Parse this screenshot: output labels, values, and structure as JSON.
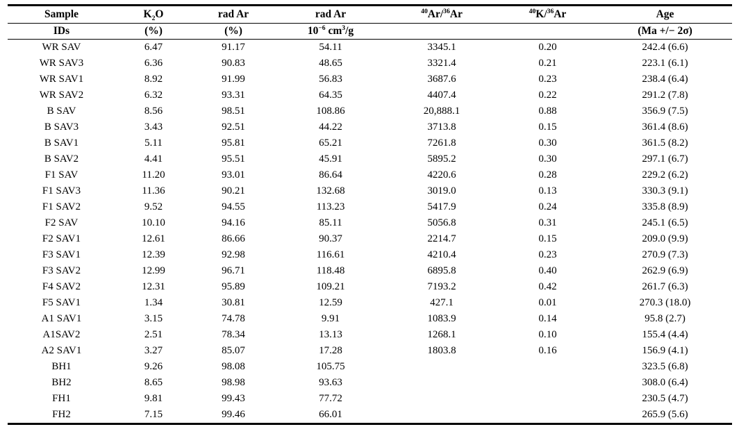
{
  "page": {
    "background_color": "#ffffff",
    "text_color": "#000000",
    "rule_color": "#000000"
  },
  "chart_data": {
    "type": "table",
    "title": "",
    "header_row1": [
      "Sample",
      "K_{2}O",
      "rad Ar",
      "rad Ar",
      "^{40}Ar/^{36}Ar",
      "^{40}K/^{36}Ar",
      "Age"
    ],
    "header_row2": [
      "IDs",
      "(%)",
      "(%)",
      "10^{−6} cm^{3}/g",
      "",
      "",
      "(Ma +/− 2σ)"
    ],
    "rows": [
      [
        "WR SAV",
        "6.47",
        "91.17",
        "54.11",
        "3345.1",
        "0.20",
        "242.4 (6.6)"
      ],
      [
        "WR SAV3",
        "6.36",
        "90.83",
        "48.65",
        "3321.4",
        "0.21",
        "223.1 (6.1)"
      ],
      [
        "WR SAV1",
        "8.92",
        "91.99",
        "56.83",
        "3687.6",
        "0.23",
        "238.4 (6.4)"
      ],
      [
        "WR SAV2",
        "6.32",
        "93.31",
        "64.35",
        "4407.4",
        "0.22",
        "291.2 (7.8)"
      ],
      [
        "B SAV",
        "8.56",
        "98.51",
        "108.86",
        "20,888.1",
        "0.88",
        "356.9 (7.5)"
      ],
      [
        "B SAV3",
        "3.43",
        "92.51",
        "44.22",
        "3713.8",
        "0.15",
        "361.4 (8.6)"
      ],
      [
        "B SAV1",
        "5.11",
        "95.81",
        "65.21",
        "7261.8",
        "0.30",
        "361.5 (8.2)"
      ],
      [
        "B SAV2",
        "4.41",
        "95.51",
        "45.91",
        "5895.2",
        "0.30",
        "297.1 (6.7)"
      ],
      [
        "F1 SAV",
        "11.20",
        "93.01",
        "86.64",
        "4220.6",
        "0.28",
        "229.2 (6.2)"
      ],
      [
        "F1 SAV3",
        "11.36",
        "90.21",
        "132.68",
        "3019.0",
        "0.13",
        "330.3 (9.1)"
      ],
      [
        "F1 SAV2",
        "9.52",
        "94.55",
        "113.23",
        "5417.9",
        "0.24",
        "335.8 (8.9)"
      ],
      [
        "F2 SAV",
        "10.10",
        "94.16",
        "85.11",
        "5056.8",
        "0.31",
        "245.1 (6.5)"
      ],
      [
        "F2 SAV1",
        "12.61",
        "86.66",
        "90.37",
        "2214.7",
        "0.15",
        "209.0 (9.9)"
      ],
      [
        "F3 SAV1",
        "12.39",
        "92.98",
        "116.61",
        "4210.4",
        "0.23",
        "270.9 (7.3)"
      ],
      [
        "F3 SAV2",
        "12.99",
        "96.71",
        "118.48",
        "6895.8",
        "0.40",
        "262.9 (6.9)"
      ],
      [
        "F4 SAV2",
        "12.31",
        "95.89",
        "109.21",
        "7193.2",
        "0.42",
        "261.7 (6.3)"
      ],
      [
        "F5 SAV1",
        "1.34",
        "30.81",
        "12.59",
        "427.1",
        "0.01",
        "270.3 (18.0)"
      ],
      [
        "A1 SAV1",
        "3.15",
        "74.78",
        "9.91",
        "1083.9",
        "0.14",
        "95.8 (2.7)"
      ],
      [
        "A1SAV2",
        "2.51",
        "78.34",
        "13.13",
        "1268.1",
        "0.10",
        "155.4 (4.4)"
      ],
      [
        "A2 SAV1",
        "3.27",
        "85.07",
        "17.28",
        "1803.8",
        "0.16",
        "156.9 (4.1)"
      ],
      [
        "BH1",
        "9.26",
        "98.08",
        "105.75",
        "",
        "",
        "323.5 (6.8)"
      ],
      [
        "BH2",
        "8.65",
        "98.98",
        "93.63",
        "",
        "",
        "308.0 (6.4)"
      ],
      [
        "FH1",
        "9.81",
        "99.43",
        "77.72",
        "",
        "",
        "230.5 (4.7)"
      ],
      [
        "FH2",
        "7.15",
        "99.46",
        "66.01",
        "",
        "",
        "265.9 (5.6)"
      ]
    ]
  }
}
